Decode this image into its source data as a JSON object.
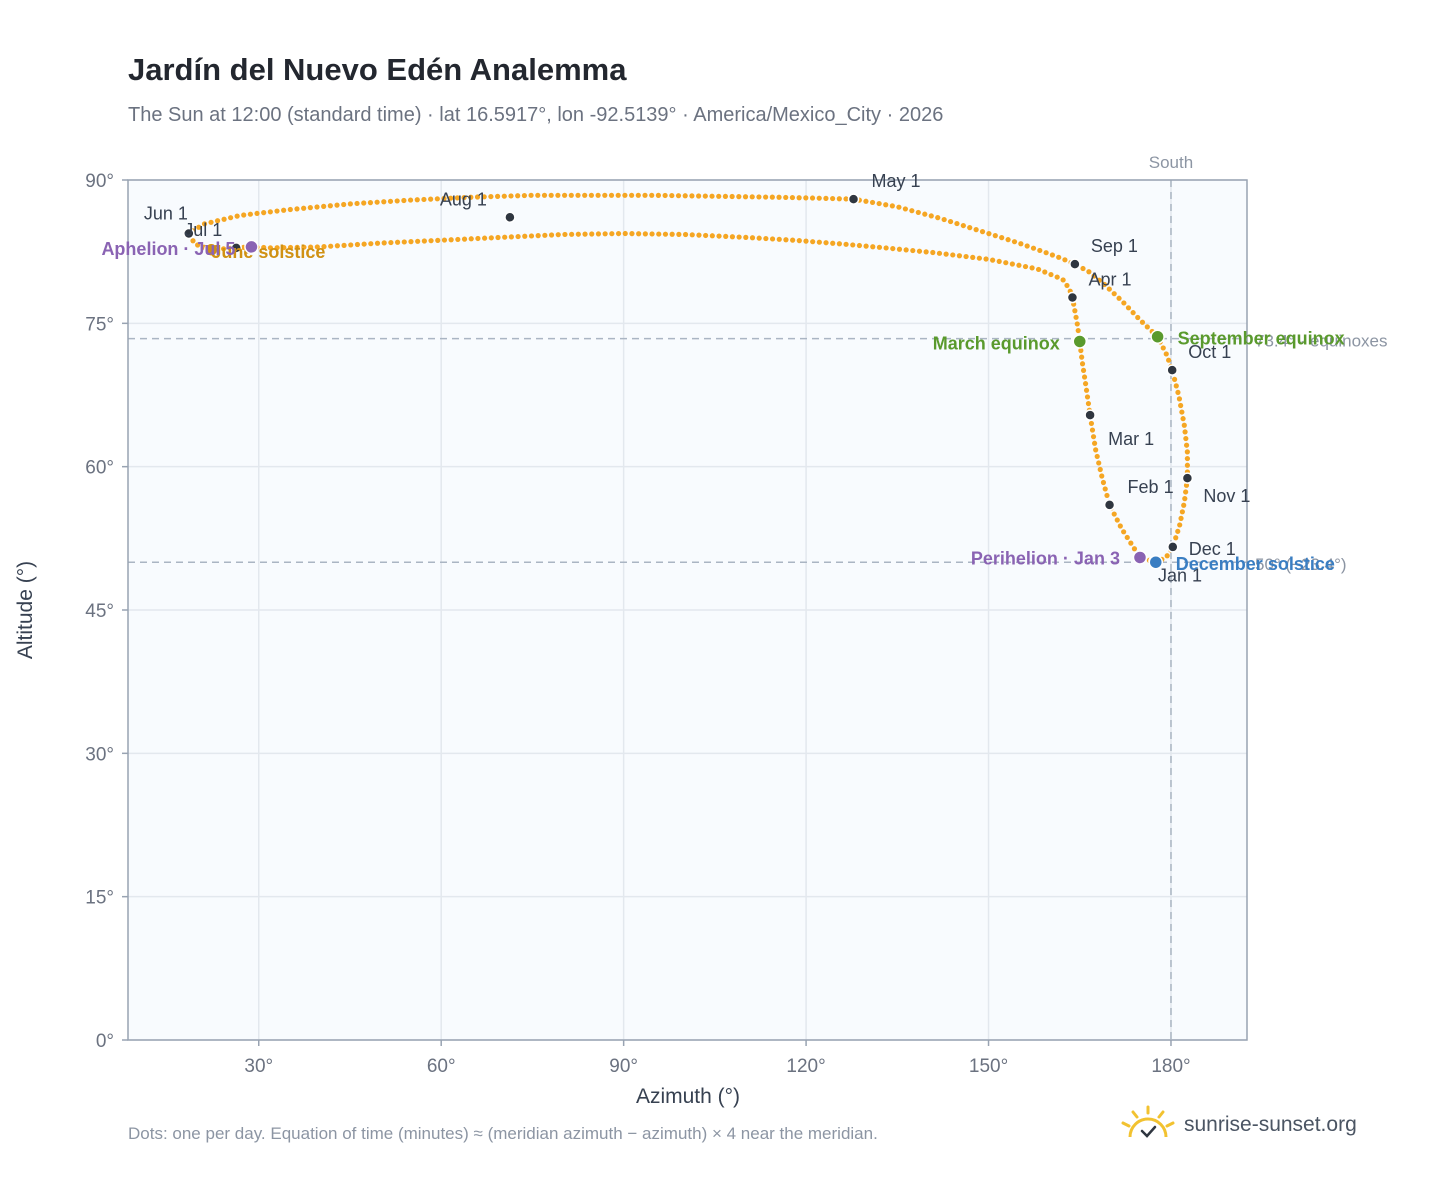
{
  "title": "Jardín del Nuevo Edén Analemma",
  "subtitle": "The Sun at 12:00 (standard time) · lat 16.5917°, lon -92.5139° · America/Mexico_City · 2026",
  "footnote": "Dots: one per day. Equation of time (minutes) ≈ (meridian azimuth − azimuth) × 4 near the meridian.",
  "brand": {
    "name": "sunrise-sunset.org",
    "icon": "sun-logo-icon"
  },
  "colors": {
    "curve": "#f5a623",
    "month_marker": "#2f3640",
    "equinox": "#5a9a2d",
    "december_solstice": "#3a7ec2",
    "june_solstice": "#d09113",
    "apsis": "#8a63b3",
    "plot_bg": "#f8fbfe",
    "grid": "#e3e8ee",
    "axis": "#98a3b2"
  },
  "chart_data": {
    "type": "scatter",
    "xlabel": "Azimuth (°)",
    "ylabel": "Altitude (°)",
    "xlim": [
      8.5,
      192.5
    ],
    "ylim": [
      0,
      90
    ],
    "xticks": [
      30,
      60,
      90,
      120,
      150,
      180
    ],
    "yticks": [
      0,
      15,
      30,
      45,
      60,
      75,
      90
    ],
    "tick_suffix": "°",
    "grid": true,
    "reference_lines": [
      {
        "axis": "x",
        "value": 180,
        "label": "South"
      },
      {
        "axis": "y",
        "value": 73.4,
        "label": "73.4° · equinoxes"
      },
      {
        "axis": "y",
        "value": 50.0,
        "label": "50° (−23.4°)"
      }
    ],
    "month_markers": [
      {
        "label": "Jan 1",
        "az": 177.2,
        "alt": 50.1
      },
      {
        "label": "Feb 1",
        "az": 169.9,
        "alt": 56.0
      },
      {
        "label": "Mar 1",
        "az": 166.7,
        "alt": 65.4
      },
      {
        "label": "Apr 1",
        "az": 163.8,
        "alt": 77.7
      },
      {
        "label": "May 1",
        "az": 127.8,
        "alt": 88.0
      },
      {
        "label": "Jun 1",
        "az": 18.5,
        "alt": 84.4
      },
      {
        "label": "Jul 1",
        "az": 26.3,
        "alt": 82.9
      },
      {
        "label": "Aug 1",
        "az": 71.3,
        "alt": 86.1
      },
      {
        "label": "Sep 1",
        "az": 164.2,
        "alt": 81.2
      },
      {
        "label": "Oct 1",
        "az": 180.2,
        "alt": 70.1
      },
      {
        "label": "Nov 1",
        "az": 182.7,
        "alt": 58.8
      },
      {
        "label": "Dec 1",
        "az": 180.3,
        "alt": 51.6
      }
    ],
    "events": [
      {
        "label": "March equinox",
        "az": 165.0,
        "alt": 73.1,
        "kind": "equinox"
      },
      {
        "label": "September equinox",
        "az": 177.8,
        "alt": 73.6,
        "kind": "equinox"
      },
      {
        "label": "June solstice",
        "az": 22.2,
        "alt": 82.7,
        "kind": "june_solstice"
      },
      {
        "label": "December solstice",
        "az": 177.5,
        "alt": 50.0,
        "kind": "december_solstice"
      },
      {
        "label": "Perihelion · Jan 3",
        "az": 174.9,
        "alt": 50.5,
        "kind": "apsis"
      },
      {
        "label": "Aphelion · Jul 5",
        "az": 28.8,
        "alt": 83.0,
        "kind": "apsis"
      }
    ],
    "path": [
      [
        177.5,
        50.0
      ],
      [
        174.9,
        50.5
      ],
      [
        171.9,
        53.5
      ],
      [
        169.9,
        56.0
      ],
      [
        168.7,
        58.8
      ],
      [
        167.6,
        61.8
      ],
      [
        166.7,
        65.4
      ],
      [
        166.0,
        68.5
      ],
      [
        165.4,
        71.0
      ],
      [
        165.0,
        73.1
      ],
      [
        164.6,
        74.9
      ],
      [
        164.2,
        76.3
      ],
      [
        163.8,
        77.7
      ],
      [
        163.3,
        78.6
      ],
      [
        162.2,
        79.6
      ],
      [
        158.0,
        80.7
      ],
      [
        150.0,
        81.7
      ],
      [
        141.0,
        82.4
      ],
      [
        133.0,
        82.9
      ],
      [
        126.0,
        83.3
      ],
      [
        118.0,
        83.7
      ],
      [
        110.0,
        84.0
      ],
      [
        100.0,
        84.3
      ],
      [
        90.0,
        84.4
      ],
      [
        80.0,
        84.3
      ],
      [
        70.0,
        84.0
      ],
      [
        60.0,
        83.7
      ],
      [
        50.0,
        83.4
      ],
      [
        40.0,
        83.0
      ],
      [
        32.0,
        82.9
      ],
      [
        28.8,
        83.0
      ],
      [
        26.3,
        82.9
      ],
      [
        22.2,
        82.7
      ],
      [
        19.5,
        83.3
      ],
      [
        18.5,
        84.4
      ],
      [
        21.0,
        85.4
      ],
      [
        27.0,
        86.3
      ],
      [
        35.0,
        86.9
      ],
      [
        45.0,
        87.5
      ],
      [
        55.0,
        87.9
      ],
      [
        65.0,
        88.2
      ],
      [
        75.0,
        88.4
      ],
      [
        85.0,
        88.4
      ],
      [
        95.0,
        88.4
      ],
      [
        105.0,
        88.3
      ],
      [
        115.0,
        88.2
      ],
      [
        122.0,
        88.1
      ],
      [
        127.8,
        88.0
      ],
      [
        135.0,
        87.2
      ],
      [
        142.0,
        86.0
      ],
      [
        149.0,
        84.6
      ],
      [
        155.0,
        83.4
      ],
      [
        159.0,
        82.5
      ],
      [
        162.0,
        81.8
      ],
      [
        164.2,
        81.2
      ],
      [
        166.5,
        80.4
      ],
      [
        169.0,
        79.1
      ],
      [
        172.0,
        77.3
      ],
      [
        175.0,
        75.3
      ],
      [
        177.8,
        73.6
      ],
      [
        179.3,
        71.7
      ],
      [
        180.2,
        70.1
      ],
      [
        181.3,
        67.4
      ],
      [
        182.2,
        64.3
      ],
      [
        182.7,
        61.5
      ],
      [
        182.7,
        58.8
      ],
      [
        182.2,
        56.3
      ],
      [
        181.4,
        53.8
      ],
      [
        180.3,
        51.6
      ],
      [
        179.2,
        50.5
      ],
      [
        177.5,
        50.0
      ]
    ]
  }
}
